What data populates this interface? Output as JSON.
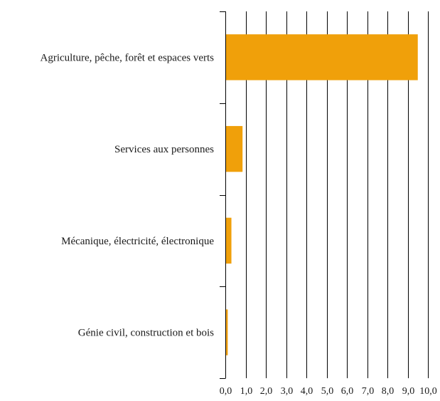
{
  "chart_data": {
    "type": "bar",
    "orientation": "horizontal",
    "categories": [
      "Agriculture, pêche, forêt et espaces verts",
      "Services aux personnes",
      "Mécanique, électricité, électronique",
      "Génie civil, construction et bois"
    ],
    "values": [
      9.5,
      0.85,
      0.3,
      0.12
    ],
    "xlim": [
      0,
      10
    ],
    "xticks": [
      0,
      1,
      2,
      3,
      4,
      5,
      6,
      7,
      8,
      9,
      10
    ],
    "xtick_labels": [
      "0,0",
      "1,0",
      "2,0",
      "3,0",
      "4,0",
      "5,0",
      "6,0",
      "7,0",
      "8,0",
      "9,0",
      "10,0"
    ],
    "title": "",
    "xlabel": "",
    "ylabel": "",
    "grid": "vertical",
    "legend": "none",
    "colors": {
      "bar": "#f0a00a",
      "grid": "#000000",
      "text": "#1a1a1a"
    }
  }
}
